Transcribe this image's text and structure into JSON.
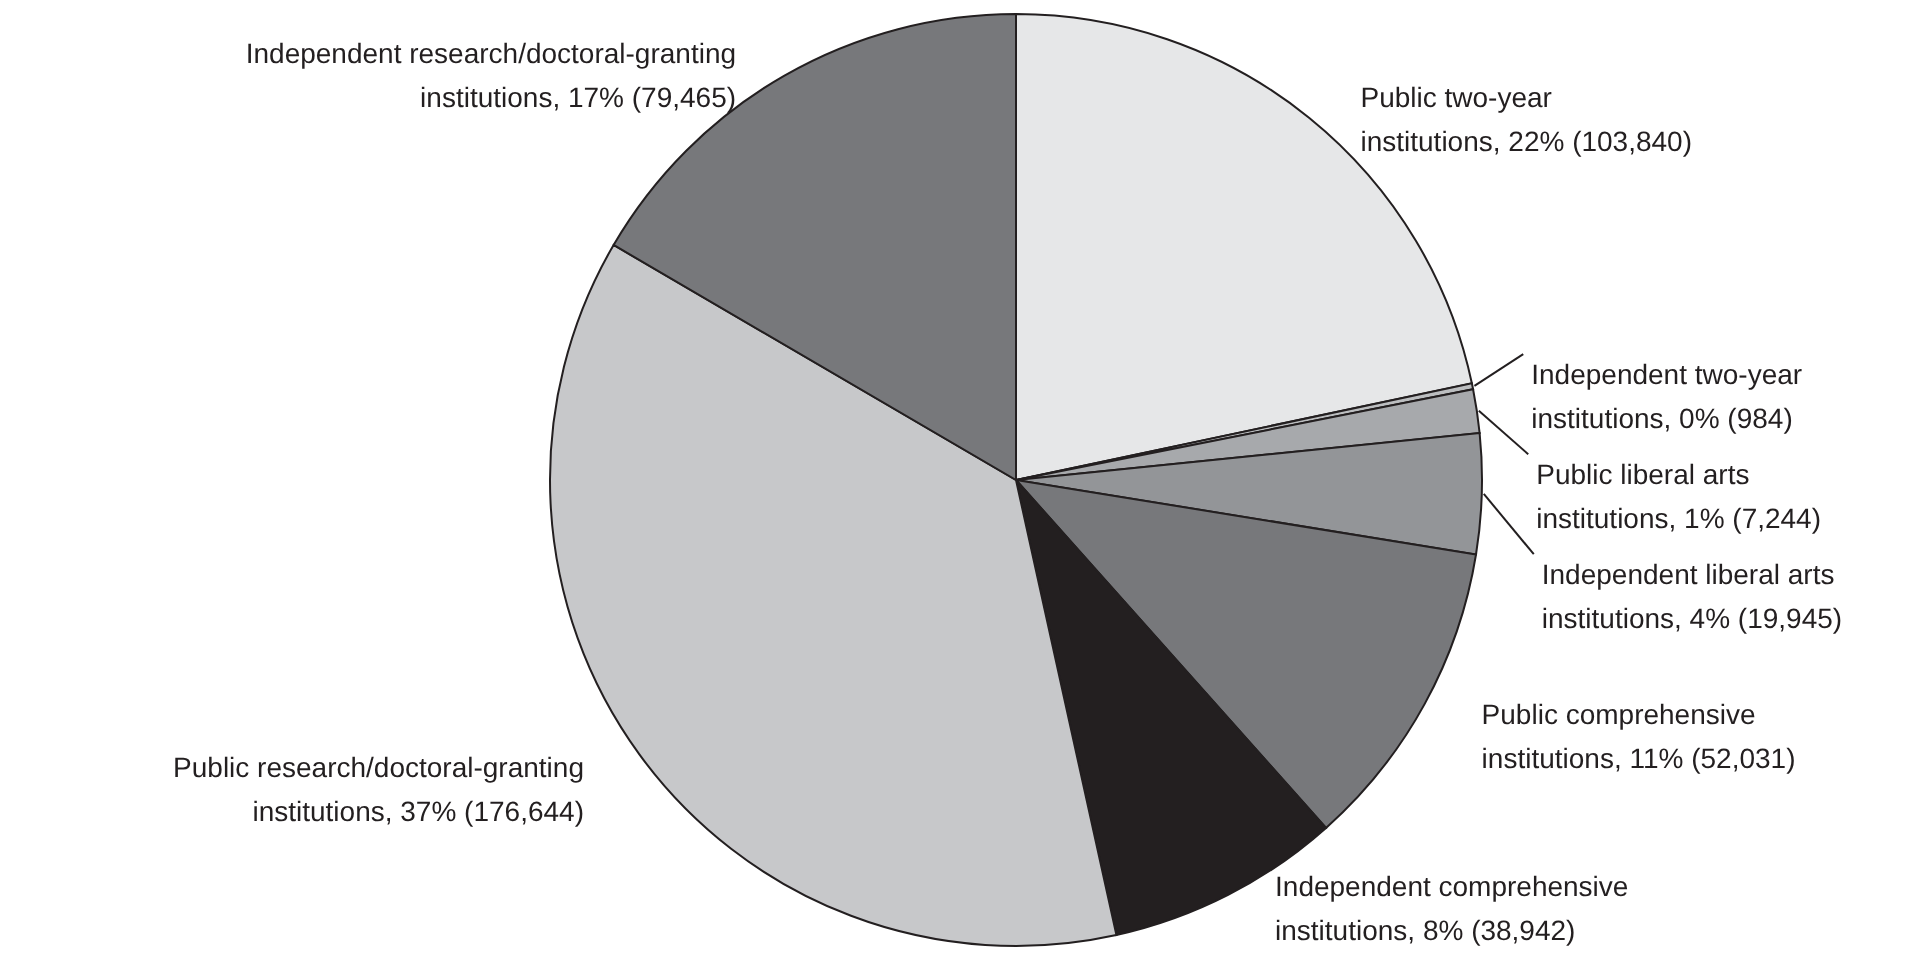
{
  "chart_data": {
    "type": "pie",
    "categories": [
      "Public two-year institutions",
      "Independent two-year institutions",
      "Public liberal arts institutions",
      "Independent liberal arts institutions",
      "Public comprehensive institutions",
      "Independent comprehensive institutions",
      "Public research/doctoral-granting institutions",
      "Independent research/doctoral-granting institutions"
    ],
    "values": [
      103840,
      984,
      7244,
      19945,
      52031,
      38942,
      176644,
      79465
    ],
    "value_labels": [
      "22% (103,840)",
      "0% (984)",
      "1% (7,244)",
      "4% (19,945)",
      "11% (52,031)",
      "8% (38,942)",
      "37% (176,644)",
      "17% (79,465)"
    ],
    "colors": [
      "#e6e7e8",
      "#bcbec0",
      "#a7a9ac",
      "#939598",
      "#77787b",
      "#231f20",
      "#c7c8ca",
      "#77787b"
    ]
  }
}
